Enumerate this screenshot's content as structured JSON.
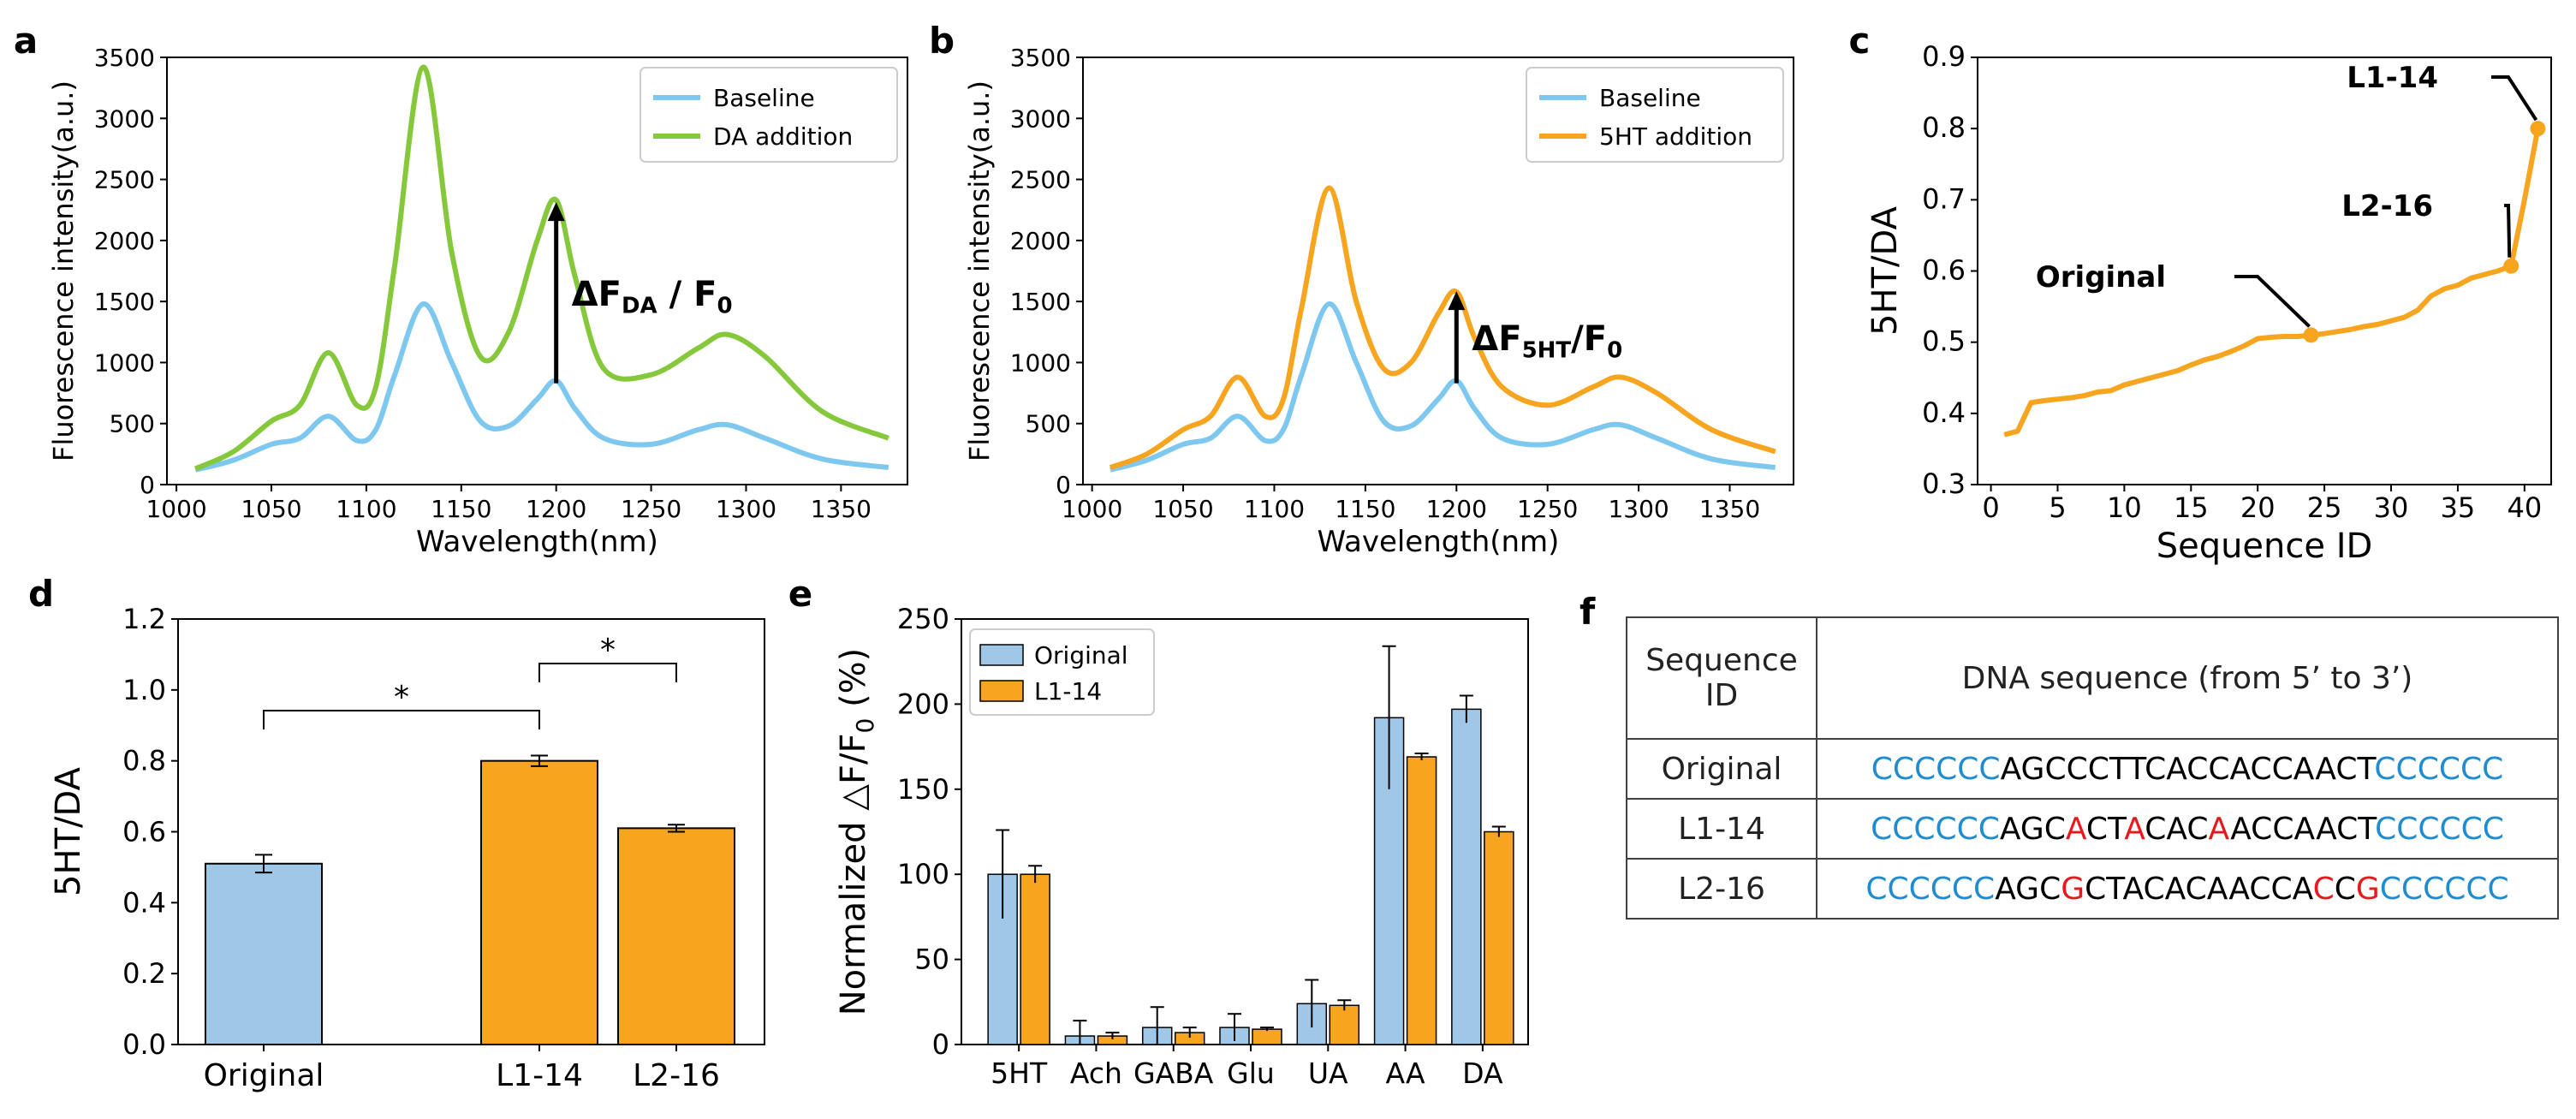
{
  "colors": {
    "baseline": "#7ec8f0",
    "da": "#86c83c",
    "ht": "#f7a41f",
    "blue_bar": "#9fc8e8",
    "orange_bar": "#f7a41f",
    "seq_blue": "#1f8ccf",
    "seq_red": "#e8191d"
  },
  "chart_data": [
    {
      "id": "a",
      "type": "line",
      "panel_letter": "a",
      "xlabel": "Wavelength(nm)",
      "ylabel": "Fluorescence intensity(a.u.)",
      "xlim": [
        995,
        1385
      ],
      "ylim": [
        0,
        3500
      ],
      "xticks": [
        1000,
        1050,
        1100,
        1150,
        1200,
        1250,
        1300,
        1350
      ],
      "yticks": [
        0,
        500,
        1000,
        1500,
        2000,
        2500,
        3000,
        3500
      ],
      "legend": [
        "Baseline",
        "DA addition"
      ],
      "legend_position": "top-right",
      "annotation": {
        "main": "ΔF",
        "sub": "DA",
        "tail": " / F",
        "sub2": "0"
      },
      "series": [
        {
          "name": "Baseline",
          "x": [
            1010,
            1030,
            1050,
            1065,
            1080,
            1095,
            1105,
            1115,
            1130,
            1145,
            1160,
            1175,
            1190,
            1200,
            1210,
            1225,
            1250,
            1275,
            1290,
            1310,
            1340,
            1375
          ],
          "y": [
            120,
            200,
            330,
            380,
            560,
            360,
            450,
            900,
            1480,
            1000,
            520,
            480,
            700,
            850,
            620,
            380,
            330,
            450,
            490,
            380,
            210,
            140
          ]
        },
        {
          "name": "DA addition",
          "x": [
            1010,
            1030,
            1050,
            1065,
            1080,
            1095,
            1105,
            1115,
            1130,
            1145,
            1160,
            1175,
            1190,
            1200,
            1210,
            1225,
            1250,
            1275,
            1290,
            1310,
            1340,
            1375
          ],
          "y": [
            130,
            270,
            520,
            650,
            1080,
            650,
            800,
            1800,
            3420,
            1900,
            1050,
            1250,
            2000,
            2330,
            1700,
            950,
            900,
            1120,
            1230,
            1050,
            600,
            380
          ]
        }
      ]
    },
    {
      "id": "b",
      "type": "line",
      "panel_letter": "b",
      "xlabel": "Wavelength(nm)",
      "ylabel": "Fluorescence intensity(a.u.)",
      "xlim": [
        995,
        1385
      ],
      "ylim": [
        0,
        3500
      ],
      "xticks": [
        1000,
        1050,
        1100,
        1150,
        1200,
        1250,
        1300,
        1350
      ],
      "yticks": [
        0,
        500,
        1000,
        1500,
        2000,
        2500,
        3000,
        3500
      ],
      "legend": [
        "Baseline",
        "5HT addition"
      ],
      "legend_position": "top-right",
      "annotation": {
        "main": "ΔF",
        "sub": "5HT",
        "tail": "/F",
        "sub2": "0"
      },
      "series": [
        {
          "name": "Baseline",
          "x": [
            1010,
            1030,
            1050,
            1065,
            1080,
            1095,
            1105,
            1115,
            1130,
            1145,
            1160,
            1175,
            1190,
            1200,
            1210,
            1225,
            1250,
            1275,
            1290,
            1310,
            1340,
            1375
          ],
          "y": [
            120,
            200,
            330,
            380,
            560,
            360,
            450,
            900,
            1480,
            1000,
            520,
            480,
            700,
            850,
            620,
            380,
            330,
            450,
            490,
            380,
            210,
            140
          ]
        },
        {
          "name": "5HT addition",
          "x": [
            1010,
            1030,
            1050,
            1065,
            1080,
            1095,
            1105,
            1115,
            1130,
            1145,
            1160,
            1175,
            1190,
            1200,
            1210,
            1225,
            1250,
            1275,
            1290,
            1310,
            1340,
            1375
          ],
          "y": [
            140,
            250,
            450,
            560,
            880,
            560,
            700,
            1450,
            2430,
            1500,
            950,
            1000,
            1400,
            1580,
            1200,
            800,
            650,
            800,
            880,
            750,
            450,
            270
          ]
        }
      ]
    },
    {
      "id": "c",
      "type": "line",
      "panel_letter": "c",
      "xlabel": "Sequence ID",
      "ylabel": "5HT/DA",
      "xlim": [
        -1,
        42
      ],
      "ylim": [
        0.3,
        0.9
      ],
      "xticks": [
        0,
        5,
        10,
        15,
        20,
        25,
        30,
        35,
        40
      ],
      "yticks": [
        0.3,
        0.4,
        0.5,
        0.6,
        0.7,
        0.8,
        0.9
      ],
      "x": [
        1,
        2,
        3,
        4,
        5,
        6,
        7,
        8,
        9,
        10,
        11,
        12,
        13,
        14,
        15,
        16,
        17,
        18,
        19,
        20,
        21,
        22,
        23,
        24,
        25,
        26,
        27,
        28,
        29,
        30,
        31,
        32,
        33,
        34,
        35,
        36,
        37,
        38,
        39,
        40,
        41
      ],
      "values": [
        0.37,
        0.375,
        0.415,
        0.418,
        0.42,
        0.422,
        0.425,
        0.43,
        0.432,
        0.44,
        0.445,
        0.45,
        0.455,
        0.46,
        0.468,
        0.475,
        0.48,
        0.487,
        0.495,
        0.505,
        0.507,
        0.508,
        0.508,
        0.51,
        0.512,
        0.515,
        0.518,
        0.522,
        0.525,
        0.53,
        0.535,
        0.545,
        0.565,
        0.575,
        0.58,
        0.59,
        0.595,
        0.6,
        0.607,
        0.7,
        0.8
      ],
      "highlight": [
        {
          "x": 24,
          "y": 0.51,
          "label": "Original"
        },
        {
          "x": 39,
          "y": 0.607,
          "label": "L2-16"
        },
        {
          "x": 41,
          "y": 0.8,
          "label": "L1-14"
        }
      ]
    },
    {
      "id": "d",
      "type": "bar",
      "panel_letter": "d",
      "ylabel": "5HT/DA",
      "ylim": [
        0,
        1.2
      ],
      "yticks": [
        0.0,
        0.2,
        0.4,
        0.6,
        0.8,
        1.0,
        1.2
      ],
      "categories": [
        "Original",
        "L1-14",
        "L2-16"
      ],
      "values": [
        0.51,
        0.8,
        0.61
      ],
      "errors": [
        0.025,
        0.015,
        0.01
      ],
      "significance": [
        {
          "from": "Original",
          "to": "L1-14",
          "label": "*"
        },
        {
          "from": "L1-14",
          "to": "L2-16",
          "label": "*"
        }
      ]
    },
    {
      "id": "e",
      "type": "bar",
      "panel_letter": "e",
      "ylabel": "Normalized △F/F",
      "ylabel_sub": "0",
      "ylabel_tail": " (%)",
      "ylim": [
        0,
        250
      ],
      "yticks": [
        0,
        50,
        100,
        150,
        200,
        250
      ],
      "categories": [
        "5HT",
        "Ach",
        "GABA",
        "Glu",
        "UA",
        "AA",
        "DA"
      ],
      "series": [
        {
          "name": "Original",
          "values": [
            100,
            5,
            10,
            10,
            24,
            192,
            197
          ],
          "errors": [
            26,
            9,
            12,
            8,
            14,
            42,
            8
          ]
        },
        {
          "name": "L1-14",
          "values": [
            100,
            5,
            7,
            9,
            23,
            169,
            125
          ],
          "errors": [
            5,
            2,
            3,
            1,
            3,
            2,
            3
          ]
        }
      ],
      "legend_position": "top-left"
    }
  ],
  "table": {
    "panel_letter": "f",
    "header": {
      "col1": [
        "Sequence",
        "ID"
      ],
      "col2": "DNA sequence (from 5’ to 3’)"
    },
    "rows": [
      {
        "id": "Original",
        "segments": [
          {
            "t": "CCCCCC",
            "c": "b"
          },
          {
            "t": "AGCCCTTCACCACCAACT",
            "c": "k"
          },
          {
            "t": "CCCCCC",
            "c": "b"
          }
        ]
      },
      {
        "id": "L1-14",
        "segments": [
          {
            "t": "CCCCCC",
            "c": "b"
          },
          {
            "t": "AGC",
            "c": "k"
          },
          {
            "t": "A",
            "c": "r"
          },
          {
            "t": "CT",
            "c": "k"
          },
          {
            "t": "A",
            "c": "r"
          },
          {
            "t": "CAC",
            "c": "k"
          },
          {
            "t": "A",
            "c": "r"
          },
          {
            "t": "ACCAACT",
            "c": "k"
          },
          {
            "t": "CCCCCC",
            "c": "b"
          }
        ]
      },
      {
        "id": "L2-16",
        "segments": [
          {
            "t": "CCCCCC",
            "c": "b"
          },
          {
            "t": "AGC",
            "c": "k"
          },
          {
            "t": "G",
            "c": "r"
          },
          {
            "t": "CTACACAACCA",
            "c": "k"
          },
          {
            "t": "C",
            "c": "r"
          },
          {
            "t": "C",
            "c": "k"
          },
          {
            "t": "G",
            "c": "r"
          },
          {
            "t": "CCCCCC",
            "c": "b"
          }
        ]
      }
    ]
  }
}
